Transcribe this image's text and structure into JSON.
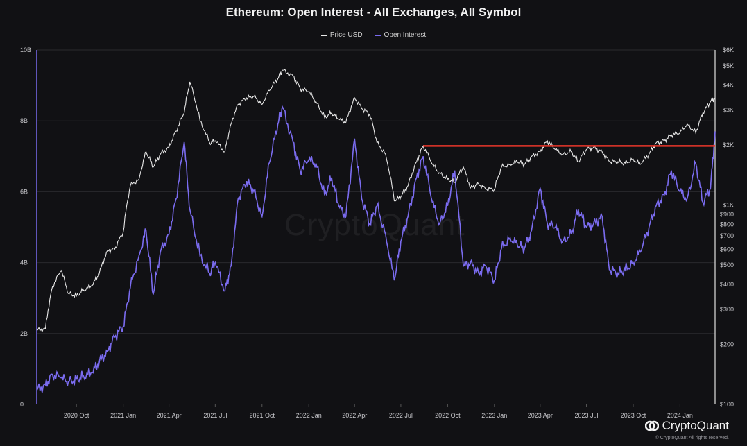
{
  "chart_data": {
    "type": "line",
    "title": "Ethereum: Open Interest - All Exchanges, All Symbol",
    "legend": [
      "Price USD",
      "Open Interest"
    ],
    "legend_position": "top-center",
    "colors": {
      "price": "#e8e8e8",
      "open_interest": "#7b6cf0",
      "resistance": "#e8362a",
      "background": "#111114",
      "grid": "#2a2a2e"
    },
    "x_ticks": [
      "2020 Oct",
      "2021 Jan",
      "2021 Apr",
      "2021 Jul",
      "2021 Oct",
      "2022 Jan",
      "2022 Apr",
      "2022 Jul",
      "2022 Oct",
      "2023 Jan",
      "2023 Apr",
      "2023 Jul",
      "2023 Oct",
      "2024 Jan"
    ],
    "x_range": [
      "2020-07-15",
      "2024-03-10"
    ],
    "y_left_ticks": [
      "0",
      "2B",
      "4B",
      "6B",
      "8B",
      "10B"
    ],
    "y_left_range": [
      0,
      10
    ],
    "y_left_unit": "billion USD",
    "y_right_ticks": [
      "$100",
      "$200",
      "$300",
      "$400",
      "$500",
      "$600",
      "$700",
      "$800",
      "$900",
      "$1K",
      "$2K",
      "$3K",
      "$4K",
      "$5K",
      "$6K"
    ],
    "y_right_range": [
      100,
      6000
    ],
    "y_right_scale": "log",
    "grid": "horizontal",
    "resistance_line": {
      "from": "2022-08-14",
      "to": "2024-03-10",
      "price": 1980
    },
    "series": [
      {
        "name": "Price USD",
        "axis": "right",
        "x": [
          "2020-07-15",
          "2020-08-01",
          "2020-08-15",
          "2020-09-01",
          "2020-09-15",
          "2020-10-01",
          "2020-10-15",
          "2020-11-01",
          "2020-11-15",
          "2020-12-01",
          "2020-12-15",
          "2021-01-01",
          "2021-01-15",
          "2021-02-01",
          "2021-02-15",
          "2021-03-01",
          "2021-03-15",
          "2021-04-01",
          "2021-04-15",
          "2021-05-01",
          "2021-05-12",
          "2021-06-01",
          "2021-06-20",
          "2021-07-01",
          "2021-07-20",
          "2021-08-01",
          "2021-08-15",
          "2021-09-01",
          "2021-09-15",
          "2021-10-01",
          "2021-10-15",
          "2021-11-01",
          "2021-11-10",
          "2021-12-01",
          "2021-12-15",
          "2022-01-01",
          "2022-01-15",
          "2022-02-01",
          "2022-02-15",
          "2022-03-01",
          "2022-03-15",
          "2022-04-01",
          "2022-04-15",
          "2022-05-01",
          "2022-05-15",
          "2022-06-01",
          "2022-06-18",
          "2022-07-01",
          "2022-07-15",
          "2022-08-01",
          "2022-08-14",
          "2022-09-01",
          "2022-09-15",
          "2022-10-01",
          "2022-10-15",
          "2022-11-01",
          "2022-11-15",
          "2022-12-01",
          "2022-12-15",
          "2023-01-01",
          "2023-01-15",
          "2023-02-01",
          "2023-02-15",
          "2023-03-01",
          "2023-03-15",
          "2023-04-01",
          "2023-04-15",
          "2023-05-01",
          "2023-05-15",
          "2023-06-01",
          "2023-06-15",
          "2023-07-01",
          "2023-07-15",
          "2023-08-01",
          "2023-08-15",
          "2023-09-01",
          "2023-09-15",
          "2023-10-01",
          "2023-10-15",
          "2023-11-01",
          "2023-11-15",
          "2023-12-01",
          "2023-12-15",
          "2024-01-01",
          "2024-01-15",
          "2024-02-01",
          "2024-02-15",
          "2024-03-01",
          "2024-03-10"
        ],
        "y": [
          235,
          240,
          390,
          470,
          360,
          350,
          375,
          395,
          455,
          590,
          600,
          730,
          1250,
          1350,
          1850,
          1550,
          1800,
          1950,
          2350,
          2900,
          4150,
          2650,
          2050,
          2100,
          1850,
          2550,
          3200,
          3450,
          3500,
          3200,
          3750,
          4300,
          4750,
          4450,
          3850,
          3700,
          3300,
          2750,
          2900,
          2700,
          2600,
          3450,
          3050,
          2850,
          2050,
          1800,
          1050,
          1100,
          1250,
          1650,
          1980,
          1600,
          1450,
          1350,
          1300,
          1550,
          1220,
          1280,
          1200,
          1200,
          1550,
          1600,
          1650,
          1600,
          1750,
          1850,
          2100,
          1900,
          1800,
          1850,
          1650,
          1900,
          1950,
          1850,
          1650,
          1650,
          1620,
          1700,
          1600,
          1800,
          2050,
          2100,
          2250,
          2300,
          2550,
          2300,
          2900,
          3300,
          3450
        ]
      },
      {
        "name": "Open Interest",
        "axis": "left",
        "x": [
          "2020-07-15",
          "2020-08-01",
          "2020-08-15",
          "2020-09-01",
          "2020-09-15",
          "2020-10-01",
          "2020-10-15",
          "2020-11-01",
          "2020-11-15",
          "2020-12-01",
          "2020-12-15",
          "2021-01-01",
          "2021-01-15",
          "2021-02-01",
          "2021-02-15",
          "2021-03-01",
          "2021-03-15",
          "2021-04-01",
          "2021-04-15",
          "2021-05-01",
          "2021-05-12",
          "2021-06-01",
          "2021-06-20",
          "2021-07-01",
          "2021-07-20",
          "2021-08-01",
          "2021-08-15",
          "2021-09-01",
          "2021-09-15",
          "2021-10-01",
          "2021-10-15",
          "2021-11-01",
          "2021-11-10",
          "2021-12-01",
          "2021-12-15",
          "2022-01-01",
          "2022-01-15",
          "2022-02-01",
          "2022-02-15",
          "2022-03-01",
          "2022-03-15",
          "2022-04-01",
          "2022-04-15",
          "2022-05-01",
          "2022-05-15",
          "2022-06-01",
          "2022-06-18",
          "2022-07-01",
          "2022-07-15",
          "2022-08-01",
          "2022-08-14",
          "2022-09-01",
          "2022-09-15",
          "2022-10-01",
          "2022-10-15",
          "2022-11-01",
          "2022-11-15",
          "2022-12-01",
          "2022-12-15",
          "2023-01-01",
          "2023-01-15",
          "2023-02-01",
          "2023-02-15",
          "2023-03-01",
          "2023-03-15",
          "2023-04-01",
          "2023-04-15",
          "2023-05-01",
          "2023-05-15",
          "2023-06-01",
          "2023-06-15",
          "2023-07-01",
          "2023-07-15",
          "2023-08-01",
          "2023-08-15",
          "2023-09-01",
          "2023-09-15",
          "2023-10-01",
          "2023-10-15",
          "2023-11-01",
          "2023-11-15",
          "2023-12-01",
          "2023-12-15",
          "2024-01-01",
          "2024-01-15",
          "2024-02-01",
          "2024-02-15",
          "2024-03-01",
          "2024-03-10"
        ],
        "y": [
          0.4,
          0.55,
          0.85,
          0.75,
          0.65,
          0.7,
          0.8,
          0.9,
          1.2,
          1.5,
          1.9,
          2.2,
          3.3,
          4.2,
          4.9,
          3.1,
          4.3,
          4.8,
          5.8,
          7.4,
          5.5,
          4.2,
          3.7,
          4.0,
          3.2,
          3.9,
          5.8,
          6.3,
          6.0,
          5.3,
          6.8,
          7.9,
          8.4,
          7.4,
          6.6,
          6.9,
          6.8,
          5.9,
          6.4,
          5.6,
          5.3,
          7.5,
          5.8,
          5.1,
          5.6,
          4.8,
          3.5,
          4.6,
          5.3,
          6.4,
          7.0,
          5.7,
          5.1,
          5.6,
          6.6,
          3.9,
          4.0,
          3.7,
          3.9,
          3.5,
          4.4,
          4.7,
          4.5,
          4.4,
          4.9,
          6.1,
          5.1,
          5.0,
          4.6,
          4.8,
          5.5,
          5.0,
          5.1,
          5.3,
          3.8,
          3.7,
          3.8,
          4.0,
          4.3,
          5.0,
          5.6,
          5.9,
          6.6,
          6.0,
          5.8,
          6.8,
          5.7,
          6.1,
          7.7
        ]
      }
    ]
  },
  "brand": {
    "name": "CryptoQuant",
    "copyright": "© CryptoQuant All rights reserved."
  }
}
